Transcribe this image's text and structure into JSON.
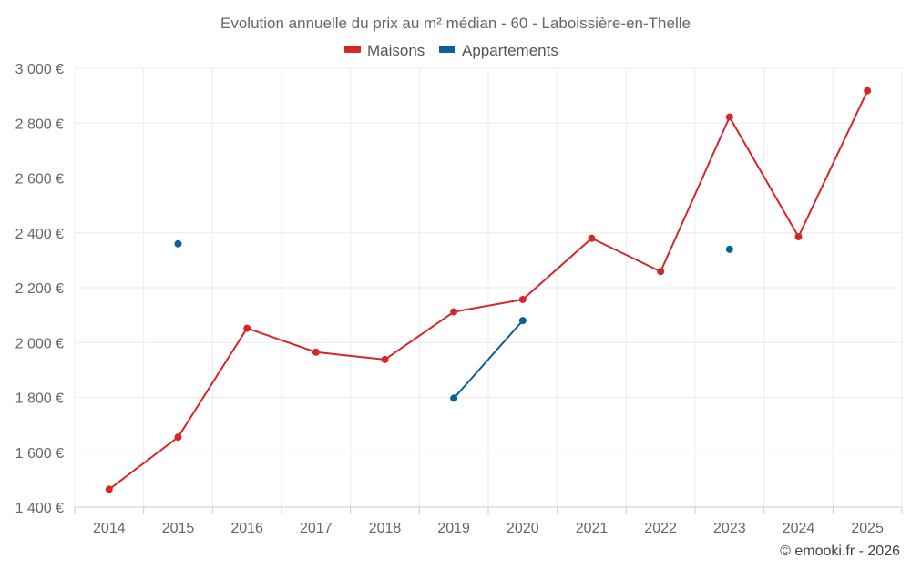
{
  "chart_data": {
    "type": "line",
    "title": "Evolution annuelle du prix au m² médian - 60 - Laboissière-en-Thelle",
    "categories": [
      "2014",
      "2015",
      "2016",
      "2017",
      "2018",
      "2019",
      "2020",
      "2021",
      "2022",
      "2023",
      "2024",
      "2025"
    ],
    "y_tick_labels": [
      "1 400 €",
      "1 600 €",
      "1 800 €",
      "2 000 €",
      "2 200 €",
      "2 400 €",
      "2 600 €",
      "2 800 €",
      "3 000 €"
    ],
    "ylim": [
      1400,
      3000
    ],
    "grid": true,
    "legend_position": "top-center",
    "series": [
      {
        "name": "Maisons",
        "color": "#d62728",
        "values": [
          1465,
          1655,
          2052,
          1965,
          1938,
          2112,
          2157,
          2380,
          2259,
          2822,
          2386,
          2918
        ]
      },
      {
        "name": "Appartements",
        "color": "#0b6197",
        "values": [
          null,
          2360,
          null,
          null,
          null,
          1797,
          2080,
          null,
          null,
          2340,
          null,
          null
        ]
      }
    ]
  },
  "credit": "© emooki.fr - 2026"
}
